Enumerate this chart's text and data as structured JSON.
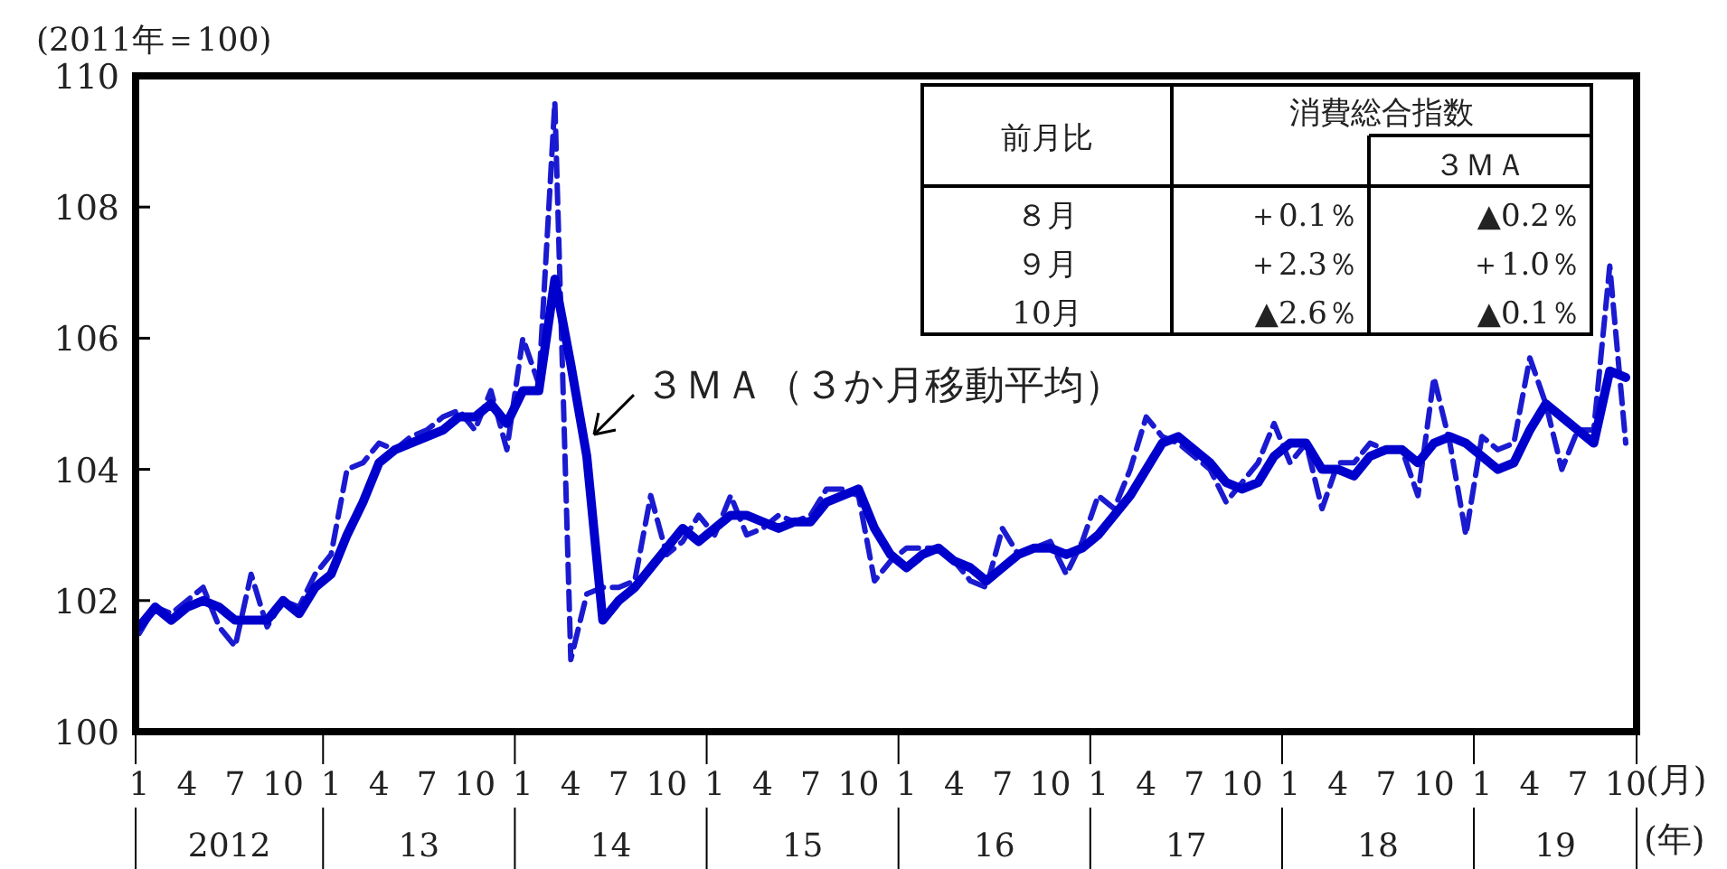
{
  "chart_data": {
    "type": "line",
    "ylabel": "(2011年＝100)",
    "categories": [
      "1",
      null,
      null,
      "4",
      null,
      null,
      "7",
      null,
      null,
      "10",
      null,
      null,
      "1",
      null,
      null,
      "4",
      null,
      null,
      "7",
      null,
      null,
      "10",
      null,
      null,
      "1",
      null,
      null,
      "4",
      null,
      null,
      "7",
      null,
      null,
      "10",
      null,
      null,
      "1",
      null,
      null,
      "4",
      null,
      null,
      "7",
      null,
      null,
      "10",
      null,
      null,
      "1",
      null,
      null,
      "4",
      null,
      null,
      "7",
      null,
      null,
      "10",
      null,
      null,
      "1",
      null,
      null,
      "4",
      null,
      null,
      "7",
      null,
      null,
      "10",
      null,
      null,
      "1",
      null,
      null,
      "4",
      null,
      null,
      "7",
      null,
      null,
      "10",
      null,
      null,
      "1",
      null,
      null,
      "4",
      null,
      null,
      "7",
      null,
      null,
      "10"
    ],
    "series": [
      {
        "color": "#1a1ad0",
        "line_style": "dashed",
        "values": [
          101.5,
          101.9,
          101.8,
          102.0,
          102.2,
          101.6,
          101.3,
          102.4,
          101.6,
          102.0,
          101.9,
          102.4,
          102.7,
          104.0,
          104.1,
          104.4,
          104.3,
          104.5,
          104.6,
          104.8,
          104.9,
          104.6,
          105.2,
          104.3,
          106.0,
          105.3,
          109.6,
          101.1,
          102.1,
          102.2,
          102.2,
          102.3,
          103.6,
          102.7,
          102.9,
          103.3,
          103.0,
          103.6,
          103.0,
          103.1,
          103.3,
          103.2,
          103.3,
          103.7,
          103.7,
          103.6,
          102.3,
          102.6,
          102.8,
          102.8,
          102.8,
          102.6,
          102.3,
          102.2,
          103.1,
          102.7,
          102.8,
          102.9,
          102.4,
          102.9,
          103.6,
          103.4,
          104.0,
          104.8,
          104.5,
          104.4,
          104.2,
          104.0,
          103.5,
          103.8,
          104.1,
          104.7,
          104.1,
          104.4,
          103.4,
          104.1,
          104.1,
          104.4,
          104.3,
          104.3,
          103.6,
          105.4,
          104.4,
          103.0,
          104.5,
          104.3,
          104.4,
          105.7,
          105.0,
          104.0,
          104.6,
          104.6,
          107.1,
          104.4
        ]
      },
      {
        "name": "３ＭＡ（３か月移動平均）",
        "color": "#0000cc",
        "line_style": "solid",
        "values": [
          101.6,
          101.9,
          101.7,
          101.9,
          102.0,
          101.9,
          101.7,
          101.7,
          101.7,
          102.0,
          101.8,
          102.2,
          102.4,
          103.0,
          103.5,
          104.1,
          104.3,
          104.4,
          104.5,
          104.6,
          104.8,
          104.8,
          105.0,
          104.7,
          105.2,
          105.2,
          106.9,
          105.6,
          104.2,
          101.7,
          102.0,
          102.2,
          102.5,
          102.8,
          103.1,
          102.9,
          103.1,
          103.3,
          103.3,
          103.2,
          103.1,
          103.2,
          103.2,
          103.5,
          103.6,
          103.7,
          103.1,
          102.7,
          102.5,
          102.7,
          102.8,
          102.6,
          102.5,
          102.3,
          102.5,
          102.7,
          102.8,
          102.8,
          102.7,
          102.8,
          103.0,
          103.3,
          103.6,
          104.0,
          104.4,
          104.5,
          104.3,
          104.1,
          103.8,
          103.7,
          103.8,
          104.2,
          104.4,
          104.4,
          104.0,
          104.0,
          103.9,
          104.2,
          104.3,
          104.3,
          104.1,
          104.4,
          104.5,
          104.4,
          104.2,
          104.0,
          104.1,
          104.6,
          105.0,
          104.8,
          104.6,
          104.4,
          105.5,
          105.4
        ]
      }
    ],
    "ylim": [
      100,
      110
    ],
    "yticks": [
      100,
      102,
      104,
      106,
      108,
      110
    ],
    "annotations": [
      "前月比",
      "消費総合指数",
      "３ＭＡ",
      "８月",
      "＋0.1％",
      "▲0.2％",
      "９月",
      "＋2.3％",
      "＋1.0％",
      "10月",
      "▲2.6％",
      "▲0.1％",
      "(月)",
      "(年)",
      "2012",
      "13",
      "14",
      "15",
      "16",
      "17",
      "18",
      "19"
    ]
  }
}
